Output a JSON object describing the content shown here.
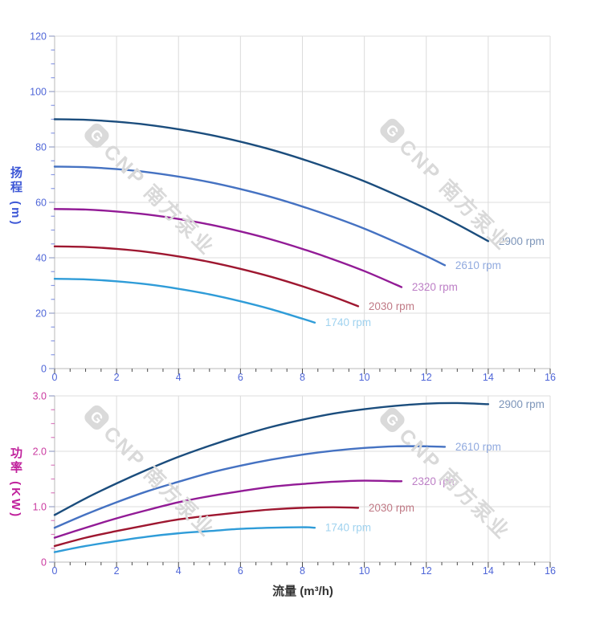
{
  "page": {
    "background": "#ffffff"
  },
  "watermark": {
    "logo_letter": "G",
    "text": "CNP 南方泵业",
    "color": "#d9d9d9"
  },
  "x_axis_title": "流量 (m³/h)",
  "chart_data": [
    {
      "type": "line",
      "id": "head-curves",
      "title": "",
      "y_axis_title": "扬程 (m)",
      "x_axis_title": "流量 (m³/h)",
      "xlim": [
        0,
        16
      ],
      "ylim": [
        0,
        120
      ],
      "grid": true,
      "legend_position": "curve-end-labels",
      "x_tick_labels": [
        "0",
        "2",
        "4",
        "6",
        "8",
        "10",
        "12",
        "14",
        "16"
      ],
      "y_tick_labels": [
        "0",
        "20",
        "40",
        "60",
        "80",
        "100",
        "120"
      ],
      "x_minor_step": 0.5,
      "y_minor_step": 5,
      "tick_label_color": "#4f66d8",
      "series": [
        {
          "label": "2900 rpm",
          "color": "#1b4d7d",
          "label_color": "#7d95b9",
          "points": [
            [
              0,
              90
            ],
            [
              1,
              89.8
            ],
            [
              2,
              89.1
            ],
            [
              3,
              88
            ],
            [
              4,
              86.4
            ],
            [
              5,
              84.4
            ],
            [
              6,
              81.9
            ],
            [
              7,
              79
            ],
            [
              8,
              75.6
            ],
            [
              9,
              71.8
            ],
            [
              10,
              67.6
            ],
            [
              11,
              62.8
            ],
            [
              12,
              57.7
            ],
            [
              13,
              52.1
            ],
            [
              14,
              46
            ]
          ]
        },
        {
          "label": "2610 rpm",
          "color": "#4572c2",
          "label_color": "#91aadf",
          "points": [
            [
              0,
              72.9
            ],
            [
              1,
              72.7
            ],
            [
              2,
              72
            ],
            [
              3,
              70.9
            ],
            [
              4,
              69.3
            ],
            [
              5,
              67.3
            ],
            [
              6,
              64.8
            ],
            [
              7,
              61.9
            ],
            [
              8,
              58.5
            ],
            [
              9,
              54.7
            ],
            [
              10,
              50.5
            ],
            [
              11,
              45.7
            ],
            [
              12,
              40.6
            ],
            [
              12.6,
              37.3
            ]
          ]
        },
        {
          "label": "2320 rpm",
          "color": "#921b96",
          "label_color": "#bd7fc6",
          "points": [
            [
              0,
              57.6
            ],
            [
              1,
              57.4
            ],
            [
              2,
              56.7
            ],
            [
              3,
              55.6
            ],
            [
              4,
              54
            ],
            [
              5,
              52
            ],
            [
              6,
              49.5
            ],
            [
              7,
              46.6
            ],
            [
              8,
              43.2
            ],
            [
              9,
              39.4
            ],
            [
              10,
              35.2
            ],
            [
              11,
              30.4
            ],
            [
              11.2,
              29.4
            ]
          ]
        },
        {
          "label": "2030 rpm",
          "color": "#9e1730",
          "label_color": "#c07a86",
          "points": [
            [
              0,
              44.1
            ],
            [
              1,
              43.9
            ],
            [
              2,
              43.2
            ],
            [
              3,
              42.1
            ],
            [
              4,
              40.5
            ],
            [
              5,
              38.5
            ],
            [
              6,
              36
            ],
            [
              7,
              33.1
            ],
            [
              8,
              29.7
            ],
            [
              9,
              25.9
            ],
            [
              9.8,
              22.5
            ]
          ]
        },
        {
          "label": "1740 rpm",
          "color": "#2f9cd8",
          "label_color": "#9fd2ef",
          "points": [
            [
              0,
              32.4
            ],
            [
              1,
              32.2
            ],
            [
              2,
              31.5
            ],
            [
              3,
              30.4
            ],
            [
              4,
              28.8
            ],
            [
              5,
              26.8
            ],
            [
              6,
              24.3
            ],
            [
              7,
              21.4
            ],
            [
              8,
              18
            ],
            [
              8.4,
              16.6
            ]
          ]
        }
      ]
    },
    {
      "type": "line",
      "id": "power-curves",
      "title": "",
      "y_axis_title": "功率 (KW)",
      "x_axis_title": "流量 (m³/h)",
      "xlim": [
        0,
        16
      ],
      "ylim": [
        0,
        3
      ],
      "grid": true,
      "legend_position": "curve-end-labels",
      "x_tick_labels": [
        "0",
        "2",
        "4",
        "6",
        "8",
        "10",
        "12",
        "14",
        "16"
      ],
      "y_tick_labels": [
        "0",
        "1.0",
        "2.0",
        "3.0"
      ],
      "x_minor_step": 0.5,
      "y_minor_step": 0.25,
      "tick_label_color": "#ca3aa0",
      "series": [
        {
          "label": "2900 rpm",
          "color": "#1b4d7d",
          "label_color": "#7d95b9",
          "points": [
            [
              0,
              0.85
            ],
            [
              1,
              1.15
            ],
            [
              2,
              1.42
            ],
            [
              3,
              1.67
            ],
            [
              4,
              1.9
            ],
            [
              5,
              2.1
            ],
            [
              6,
              2.28
            ],
            [
              7,
              2.44
            ],
            [
              8,
              2.57
            ],
            [
              9,
              2.68
            ],
            [
              10,
              2.76
            ],
            [
              11,
              2.82
            ],
            [
              12,
              2.86
            ],
            [
              13,
              2.87
            ],
            [
              14,
              2.85
            ]
          ]
        },
        {
          "label": "2610 rpm",
          "color": "#4572c2",
          "label_color": "#91aadf",
          "points": [
            [
              0,
              0.62
            ],
            [
              1,
              0.86
            ],
            [
              2,
              1.08
            ],
            [
              3,
              1.28
            ],
            [
              4,
              1.45
            ],
            [
              5,
              1.61
            ],
            [
              6,
              1.74
            ],
            [
              7,
              1.85
            ],
            [
              8,
              1.94
            ],
            [
              9,
              2.01
            ],
            [
              10,
              2.06
            ],
            [
              11,
              2.09
            ],
            [
              12,
              2.09
            ],
            [
              12.6,
              2.08
            ]
          ]
        },
        {
          "label": "2320 rpm",
          "color": "#921b96",
          "label_color": "#bd7fc6",
          "points": [
            [
              0,
              0.44
            ],
            [
              1,
              0.62
            ],
            [
              2,
              0.79
            ],
            [
              3,
              0.94
            ],
            [
              4,
              1.08
            ],
            [
              5,
              1.19
            ],
            [
              6,
              1.28
            ],
            [
              7,
              1.36
            ],
            [
              8,
              1.41
            ],
            [
              9,
              1.45
            ],
            [
              10,
              1.47
            ],
            [
              11,
              1.46
            ],
            [
              11.2,
              1.46
            ]
          ]
        },
        {
          "label": "2030 rpm",
          "color": "#9e1730",
          "label_color": "#c07a86",
          "points": [
            [
              0,
              0.29
            ],
            [
              1,
              0.44
            ],
            [
              2,
              0.56
            ],
            [
              3,
              0.67
            ],
            [
              4,
              0.77
            ],
            [
              5,
              0.84
            ],
            [
              6,
              0.9
            ],
            [
              7,
              0.95
            ],
            [
              8,
              0.98
            ],
            [
              9,
              0.99
            ],
            [
              9.8,
              0.98
            ]
          ]
        },
        {
          "label": "1740 rpm",
          "color": "#2f9cd8",
          "label_color": "#9fd2ef",
          "points": [
            [
              0,
              0.18
            ],
            [
              1,
              0.29
            ],
            [
              2,
              0.38
            ],
            [
              3,
              0.46
            ],
            [
              4,
              0.52
            ],
            [
              5,
              0.56
            ],
            [
              6,
              0.6
            ],
            [
              7,
              0.62
            ],
            [
              8,
              0.63
            ],
            [
              8.4,
              0.62
            ]
          ]
        }
      ]
    }
  ]
}
